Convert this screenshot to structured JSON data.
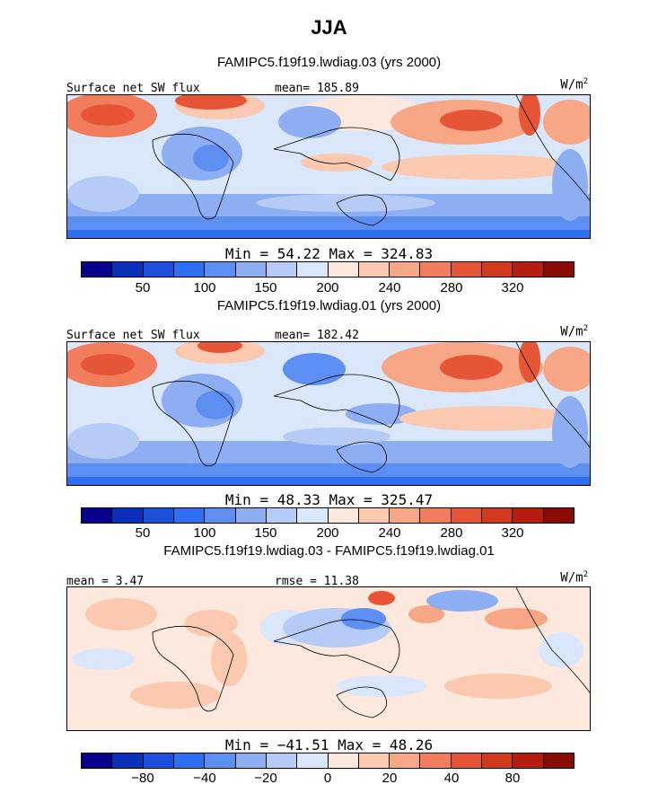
{
  "season_title": "JJA",
  "colors": {
    "abs": [
      "#08008c",
      "#0a2fb8",
      "#1c4fdc",
      "#2e6ef0",
      "#5d8ef2",
      "#8eaef4",
      "#b6ccf7",
      "#dae6fa",
      "#fde8dd",
      "#fbc9b0",
      "#f7a686",
      "#f17d5c",
      "#e65636",
      "#d23a1d",
      "#b51d10",
      "#8a0a05"
    ],
    "diff": [
      "#08008c",
      "#0a2fb8",
      "#1c4fdc",
      "#2e6ef0",
      "#5d8ef2",
      "#8eaef4",
      "#b6ccf7",
      "#dae6fa",
      "#fde8dd",
      "#fbc9b0",
      "#f7a686",
      "#f17d5c",
      "#e65636",
      "#d23a1d",
      "#b51d10",
      "#8a0a05"
    ]
  },
  "chart_data": [
    {
      "type": "heatmap",
      "title": "FAMIPC5.f19f19.lwdiag.03 (yrs 2000)",
      "field_label": "Surface net SW flux",
      "mean_text": "mean= 185.89",
      "units": "W/m",
      "units_sup": "2",
      "min_max_text": "Min =  54.22 Max = 324.83",
      "min": 54.22,
      "max": 324.83,
      "mean": 185.89,
      "colorbar_ticks": [
        "50",
        "100",
        "150",
        "200",
        "240",
        "280",
        "320"
      ]
    },
    {
      "type": "heatmap",
      "title": "FAMIPC5.f19f19.lwdiag.01 (yrs 2000)",
      "field_label": "Surface net SW flux",
      "mean_text": "mean= 182.42",
      "units": "W/m",
      "units_sup": "2",
      "min_max_text": "Min =  48.33 Max = 325.47",
      "min": 48.33,
      "max": 325.47,
      "mean": 182.42,
      "colorbar_ticks": [
        "50",
        "100",
        "150",
        "200",
        "240",
        "280",
        "320"
      ]
    },
    {
      "type": "heatmap",
      "title": "FAMIPC5.f19f19.lwdiag.03 - FAMIPC5.f19f19.lwdiag.01",
      "field_label": "mean =   3.47",
      "mean_text": "rmse =  11.38",
      "units": "W/m",
      "units_sup": "2",
      "min_max_text": "Min = −41.51 Max =  48.26",
      "min": -41.51,
      "max": 48.26,
      "mean": 3.47,
      "rmse": 11.38,
      "colorbar_ticks": [
        "−80",
        "−40",
        "−20",
        "0",
        "20",
        "40",
        "80"
      ]
    }
  ]
}
